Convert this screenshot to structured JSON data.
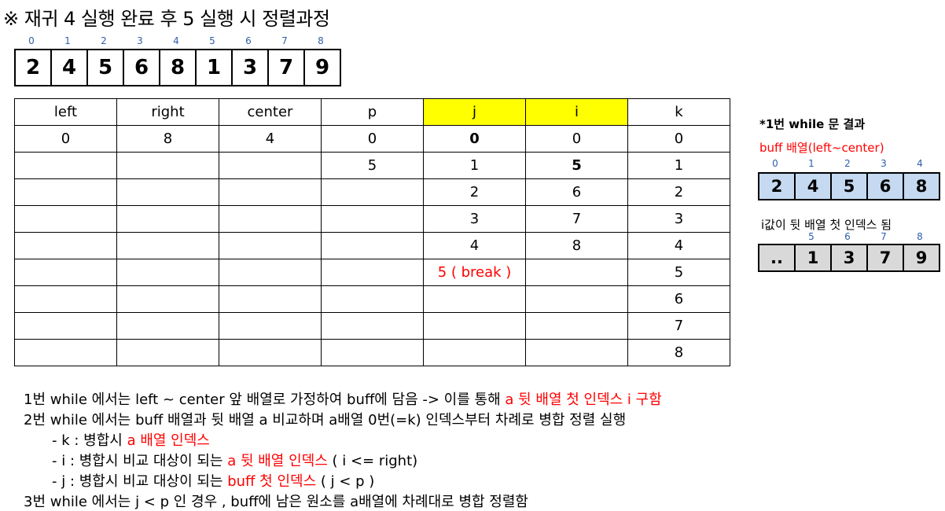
{
  "title": "※ 재귀 4 실행 완료 후 5 실행 시 정렬과정",
  "main_array": {
    "indices": [
      "0",
      "1",
      "2",
      "3",
      "4",
      "5",
      "6",
      "7",
      "8"
    ],
    "values": [
      "2",
      "4",
      "5",
      "6",
      "8",
      "1",
      "3",
      "7",
      "9"
    ]
  },
  "trace_table": {
    "headers": [
      "left",
      "right",
      "center",
      "p",
      "j",
      "i",
      "k"
    ],
    "highlight_color": "#ffff00",
    "rows": [
      [
        "0",
        "8",
        "4",
        "0",
        "0",
        "0",
        "0"
      ],
      [
        "",
        "",
        "",
        "5",
        "1",
        "5",
        "1"
      ],
      [
        "",
        "",
        "",
        "",
        "2",
        "6",
        "2"
      ],
      [
        "",
        "",
        "",
        "",
        "3",
        "7",
        "3"
      ],
      [
        "",
        "",
        "",
        "",
        "4",
        "8",
        "4"
      ],
      [
        "",
        "",
        "",
        "",
        "5 ( break )",
        "",
        "5"
      ],
      [
        "",
        "",
        "",
        "",
        "",
        "",
        "6"
      ],
      [
        "",
        "",
        "",
        "",
        "",
        "",
        "7"
      ],
      [
        "",
        "",
        "",
        "",
        "",
        "",
        "8"
      ]
    ]
  },
  "side": {
    "result_label": "*1번 while 문 결과",
    "buff_label": "buff 배열(left~center)",
    "buff_indices": [
      "0",
      "1",
      "2",
      "3",
      "4"
    ],
    "buff_values": [
      "2",
      "4",
      "5",
      "6",
      "8"
    ],
    "i_note": "i값이 뒷 배열 첫 인덱스 됨",
    "back_indices": [
      "5",
      "6",
      "7",
      "8"
    ],
    "back_values": [
      "..",
      "1",
      "3",
      "7",
      "9"
    ]
  },
  "notes": {
    "line1_prefix": "1번 while 에서는 left ~ center 앞 배열로 가정하여 buff에 담음 -> 이를 통해 ",
    "line1_red": "a 뒷 배열 첫 인덱스 i 구함",
    "line2": "2번 while 에서는 buff 배열과 뒷 배열 a 비교하며 a배열 0번(=k) 인덱스부터 차례로 병합 정렬 실행",
    "line3_prefix": "- k : 병합시 ",
    "line3_red": "a 배열 인덱스",
    "line4_prefix": "- i : 병합시 비교 대상이 되는 ",
    "line4_red": "a 뒷 배열 인덱스",
    "line4_suffix": " ( i <= right)",
    "line5_prefix": "- j : 병합시 비교 대상이 되는 ",
    "line5_red": "buff 첫 인덱스",
    "line5_suffix": " ( j < p )",
    "line6": "3번 while 에서는 j < p 인 경우 , buff에 남은 원소를 a배열에 차례대로 병합 정렬함"
  },
  "colors": {
    "accent_red": "#ff0000",
    "index_blue": "#2f5fa8",
    "buff_fill": "#c5d9f1",
    "back_fill": "#d9d9d9"
  }
}
